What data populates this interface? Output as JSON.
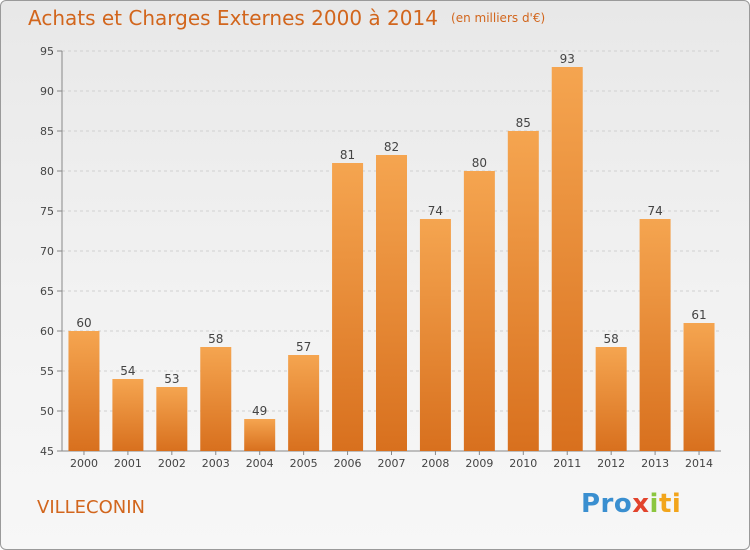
{
  "header": {
    "title": "Achats et Charges Externes 2000 à 2014",
    "unit": "(en milliers d'€)"
  },
  "footer": {
    "place": "VILLECONIN",
    "logo": [
      "Pro",
      "x",
      "i",
      "ti"
    ]
  },
  "colors": {
    "bar_top": "#f5a550",
    "bar_bottom": "#d8701e",
    "title": "#d2661d"
  },
  "chart_data": {
    "type": "bar",
    "title": "Achats et Charges Externes 2000 à 2014",
    "subtitle": "(en milliers d'€)",
    "xlabel": "",
    "ylabel": "",
    "categories": [
      "2000",
      "2001",
      "2002",
      "2003",
      "2004",
      "2005",
      "2006",
      "2007",
      "2008",
      "2009",
      "2010",
      "2011",
      "2012",
      "2013",
      "2014"
    ],
    "values": [
      60,
      54,
      53,
      58,
      49,
      57,
      81,
      82,
      74,
      80,
      85,
      93,
      58,
      74,
      61
    ],
    "ylim": [
      45,
      95
    ],
    "yticks": [
      45,
      50,
      55,
      60,
      65,
      70,
      75,
      80,
      85,
      90,
      95
    ],
    "grid": true
  }
}
